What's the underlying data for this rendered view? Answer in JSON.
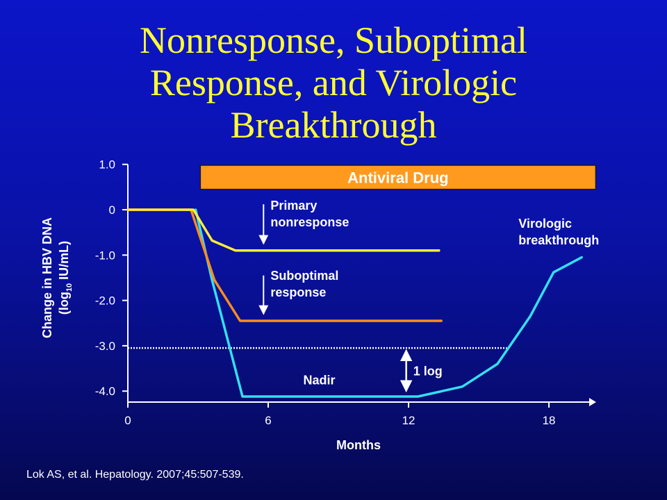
{
  "slide": {
    "title_lines": [
      "Nonresponse, Suboptimal",
      "Response, and Virologic",
      "Breakthrough"
    ],
    "citation": "Lok AS, et al. Hepatology. 2007;45:507-539."
  },
  "colors": {
    "background": "#0a12a8",
    "title": "#ffff33",
    "axis": "#ffffff",
    "primary_nonresponse": "#ffee33",
    "suboptimal_response": "#ff8c1a",
    "virologic_breakthrough": "#33e0f0",
    "drug_bar": "#ff9a1f"
  },
  "chart_data": {
    "type": "line",
    "xlabel": "Months",
    "ylabel_main": "Change in HBV DNA",
    "ylabel_sub_prefix": "(log",
    "ylabel_sub_subscript": "10",
    "ylabel_sub_suffix": " IU/mL)",
    "xlim": [
      0,
      20
    ],
    "ylim": [
      -4.2,
      1.0
    ],
    "xticks": [
      {
        "value": 0,
        "label": "0"
      },
      {
        "value": 6,
        "label": "6"
      },
      {
        "value": 12,
        "label": "12"
      },
      {
        "value": 18,
        "label": "18"
      }
    ],
    "yticks": [
      {
        "value": 1,
        "label": "1.0"
      },
      {
        "value": 0,
        "label": "0"
      },
      {
        "value": -1,
        "label": "-1.0"
      },
      {
        "value": -2,
        "label": "-2.0"
      },
      {
        "value": -3,
        "label": "-3.0"
      },
      {
        "value": -4,
        "label": "-4.0"
      }
    ],
    "grid": false,
    "series": [
      {
        "name": "Primary nonresponse",
        "points": [
          [
            0,
            0
          ],
          [
            2.8,
            0
          ],
          [
            3.6,
            -0.68
          ],
          [
            4.6,
            -0.9
          ],
          [
            13.3,
            -0.9
          ]
        ]
      },
      {
        "name": "Suboptimal response",
        "points": [
          [
            0,
            0
          ],
          [
            2.7,
            0
          ],
          [
            3.7,
            -1.55
          ],
          [
            4.8,
            -2.45
          ],
          [
            13.4,
            -2.45
          ]
        ]
      },
      {
        "name": "Virologic breakthrough",
        "points": [
          [
            2.9,
            0
          ],
          [
            3.6,
            -1.55
          ],
          [
            4.9,
            -4.12
          ],
          [
            12.4,
            -4.12
          ],
          [
            14.3,
            -3.9
          ],
          [
            15.8,
            -3.4
          ],
          [
            17.2,
            -2.35
          ],
          [
            18.2,
            -1.38
          ],
          [
            19.4,
            -1.05
          ]
        ]
      }
    ],
    "threshold_line": {
      "y": -3.05,
      "x_start": 0,
      "x_end": 16.2
    },
    "drug_bar": {
      "label": "Antiviral Drug",
      "x_start": 3.1,
      "x_end": 20.0,
      "y_top": 0.98,
      "y_bottom": 0.45
    },
    "annotations": [
      {
        "lines": [
          "Primary",
          "nonresponse"
        ],
        "arrow": {
          "x": 5.8,
          "y1": 0.12,
          "y2": -0.75
        },
        "text_x": 6.1,
        "text_y": 0.0
      },
      {
        "lines": [
          "Suboptimal",
          "response"
        ],
        "arrow": {
          "x": 5.8,
          "y1": -1.45,
          "y2": -2.3
        },
        "text_x": 6.1,
        "text_y": -1.55
      },
      {
        "lines": [
          "Virologic",
          "breakthrough"
        ],
        "text_x": 16.7,
        "text_y": -0.4
      },
      {
        "lines": [
          "Nadir"
        ],
        "text_x": 7.5,
        "text_y": -3.85
      },
      {
        "lines": [
          "1 log"
        ],
        "arrow_double": {
          "x": 11.9,
          "y1": -3.1,
          "y2": -4.0
        },
        "text_x": 12.2,
        "text_y": -3.65
      }
    ]
  }
}
